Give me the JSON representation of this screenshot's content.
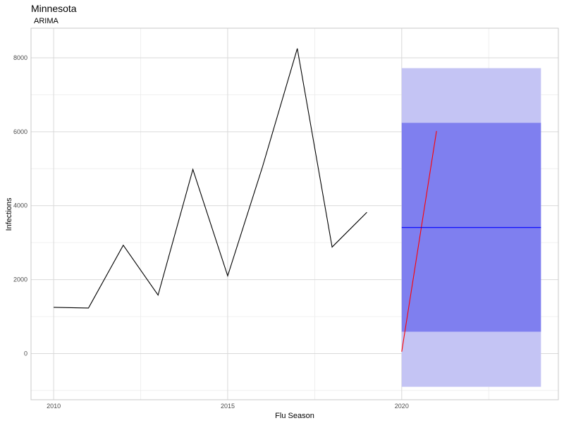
{
  "chart_data": {
    "type": "line",
    "title": "Minnesota",
    "subtitle": "ARIMA",
    "xlabel": "Flu Season",
    "ylabel": "Infections",
    "xlim": [
      2009.35,
      2024.5
    ],
    "ylim": [
      -1250,
      8800
    ],
    "x_major_ticks": [
      2010,
      2015,
      2020
    ],
    "x_minor_ticks": [
      2012.5,
      2017.5,
      2022.5
    ],
    "y_major_ticks": [
      0,
      2000,
      4000,
      6000,
      8000
    ],
    "y_minor_ticks": [
      -1000,
      1000,
      3000,
      5000,
      7000
    ],
    "grid": true,
    "series": [
      {
        "role": "observed",
        "color": "#000000",
        "x": [
          2010,
          2011,
          2012,
          2013,
          2014,
          2015,
          2016,
          2017,
          2018,
          2019
        ],
        "y": [
          1250,
          1230,
          2930,
          1580,
          4980,
          2100,
          5050,
          8250,
          2880,
          3820
        ]
      },
      {
        "role": "actual",
        "color": "#ff0000",
        "x": [
          2020,
          2021
        ],
        "y": [
          50,
          6020
        ]
      },
      {
        "role": "forecast",
        "color": "#0000ff",
        "x": [
          2020,
          2024
        ],
        "y": [
          3410,
          3410
        ]
      }
    ],
    "bands": [
      {
        "role": "95% interval",
        "color": "#c4c4f4",
        "x": [
          2020,
          2024
        ],
        "lower": -900,
        "upper": 7720
      },
      {
        "role": "80% interval",
        "color": "#7f7fef",
        "x": [
          2020,
          2024
        ],
        "lower": 590,
        "upper": 6240
      }
    ]
  }
}
